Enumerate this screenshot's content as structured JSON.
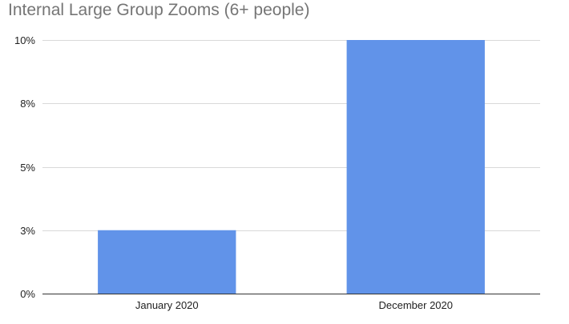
{
  "chart_data": {
    "type": "bar",
    "title": "Internal Large Group Zooms (6+ people)",
    "categories": [
      "January 2020",
      "December 2020"
    ],
    "values": [
      2.5,
      10
    ],
    "ylim": [
      0,
      10
    ],
    "yticks": [
      0,
      2.5,
      5,
      7.5,
      10
    ],
    "ytick_labels": [
      "0%",
      "3%",
      "5%",
      "8%",
      "10%"
    ],
    "xlabel": "",
    "ylabel": "",
    "grid": true,
    "legend": "none",
    "bar_color": "#6193e9",
    "grid_color": "#d9d9d9",
    "axis_color": "#333333"
  }
}
